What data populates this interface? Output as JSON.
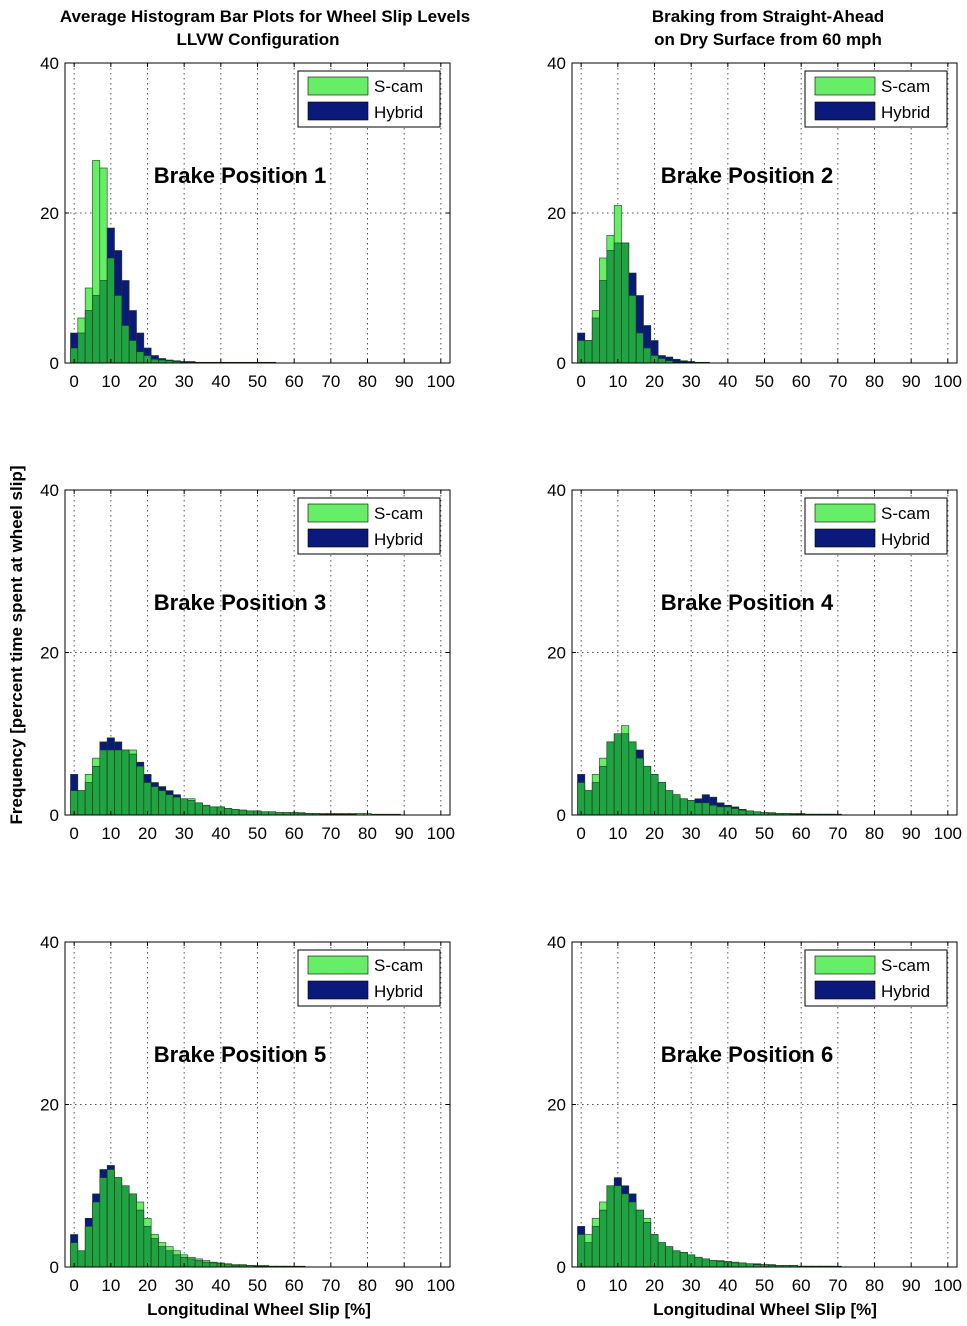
{
  "figure": {
    "title_left": [
      "Average Histogram Bar Plots for Wheel Slip Levels",
      "LLVW Configuration"
    ],
    "title_right": [
      "Braking from Straight-Ahead",
      "on Dry Surface from 60 mph"
    ],
    "ylabel": "Frequency [percent time spent at wheel slip]",
    "xlabel": "Longitudinal Wheel Slip [%]",
    "colors": {
      "scam": "#66ee66",
      "hybrid": "#0b1a7a",
      "overlap": "#1fa343",
      "edge": "#1a3a1a"
    }
  },
  "chart_data": [
    {
      "type": "bar",
      "panel": "Brake Position 1",
      "x_tick_labels": [
        "0",
        "10",
        "20",
        "30",
        "40",
        "50",
        "60",
        "70",
        "80",
        "90",
        "100"
      ],
      "y_tick_labels": [
        "0",
        "20",
        "40"
      ],
      "xlim": [
        -2.5,
        102.5
      ],
      "ylim": [
        0,
        40
      ],
      "grid": true,
      "legend_position": "top-right",
      "bin_width": 2,
      "x": [
        0,
        2,
        4,
        6,
        8,
        10,
        12,
        14,
        16,
        18,
        20,
        22,
        24,
        26,
        28,
        30,
        32,
        34,
        36,
        38,
        40,
        42,
        44,
        46,
        48,
        50,
        52,
        54,
        56,
        58,
        60,
        62,
        64,
        66,
        68,
        70,
        72,
        74,
        76,
        78,
        80,
        82,
        84,
        86,
        88,
        90,
        92,
        94,
        96,
        98,
        100
      ],
      "series": [
        {
          "name": "S-cam",
          "values": [
            2,
            6,
            10,
            27,
            26,
            14,
            9,
            5,
            3,
            1.5,
            1,
            0.5,
            0.4,
            0.3,
            0.2,
            0.1,
            0.1,
            0,
            0,
            0,
            0,
            0,
            0,
            0,
            0,
            0,
            0,
            0,
            0,
            0,
            0,
            0,
            0,
            0,
            0,
            0,
            0,
            0,
            0,
            0,
            0,
            0,
            0,
            0,
            0,
            0,
            0,
            0,
            0,
            0,
            0
          ]
        },
        {
          "name": "Hybrid",
          "values": [
            4,
            4,
            7,
            9,
            11,
            18,
            15,
            11,
            7,
            4,
            2,
            1,
            0.6,
            0.4,
            0.3,
            0.2,
            0.2,
            0.1,
            0.1,
            0.1,
            0.1,
            0.1,
            0.1,
            0.1,
            0.1,
            0.1,
            0.1,
            0.1,
            0,
            0,
            0,
            0,
            0,
            0,
            0,
            0,
            0,
            0,
            0,
            0,
            0,
            0,
            0,
            0,
            0,
            0,
            0,
            0,
            0,
            0,
            0
          ]
        }
      ]
    },
    {
      "type": "bar",
      "panel": "Brake Position 2",
      "x_tick_labels": [
        "0",
        "10",
        "20",
        "30",
        "40",
        "50",
        "60",
        "70",
        "80",
        "90",
        "100"
      ],
      "y_tick_labels": [
        "0",
        "20",
        "40"
      ],
      "xlim": [
        -2.5,
        102.5
      ],
      "ylim": [
        0,
        40
      ],
      "grid": true,
      "legend_position": "top-right",
      "bin_width": 2,
      "x": [
        0,
        2,
        4,
        6,
        8,
        10,
        12,
        14,
        16,
        18,
        20,
        22,
        24,
        26,
        28,
        30,
        32,
        34,
        36,
        38,
        40,
        42,
        44,
        46,
        48,
        50,
        52,
        54,
        56,
        58,
        60,
        62,
        64,
        66,
        68,
        70,
        72,
        74,
        76,
        78,
        80,
        82,
        84,
        86,
        88,
        90,
        92,
        94,
        96,
        98,
        100
      ],
      "series": [
        {
          "name": "S-cam",
          "values": [
            3,
            3,
            7,
            14,
            17,
            21,
            16,
            9,
            4,
            2,
            1,
            0.6,
            0.3,
            0.1,
            0,
            0,
            0,
            0,
            0,
            0,
            0,
            0,
            0,
            0,
            0,
            0,
            0,
            0,
            0,
            0,
            0,
            0,
            0,
            0,
            0,
            0,
            0,
            0,
            0,
            0,
            0,
            0,
            0,
            0,
            0,
            0,
            0,
            0,
            0,
            0,
            0
          ]
        },
        {
          "name": "Hybrid",
          "values": [
            4,
            3,
            6,
            11,
            15,
            16,
            16,
            12,
            9,
            5,
            3,
            1,
            0.8,
            0.5,
            0.3,
            0.2,
            0.1,
            0.1,
            0,
            0,
            0,
            0,
            0,
            0,
            0,
            0,
            0,
            0,
            0,
            0,
            0,
            0,
            0,
            0,
            0,
            0,
            0,
            0,
            0,
            0,
            0,
            0,
            0,
            0,
            0,
            0,
            0,
            0,
            0,
            0,
            0
          ]
        }
      ]
    },
    {
      "type": "bar",
      "panel": "Brake Position 3",
      "x_tick_labels": [
        "0",
        "10",
        "20",
        "30",
        "40",
        "50",
        "60",
        "70",
        "80",
        "90",
        "100"
      ],
      "y_tick_labels": [
        "0",
        "20",
        "40"
      ],
      "xlim": [
        -2.5,
        102.5
      ],
      "ylim": [
        0,
        40
      ],
      "grid": true,
      "legend_position": "top-right",
      "bin_width": 2,
      "x": [
        0,
        2,
        4,
        6,
        8,
        10,
        12,
        14,
        16,
        18,
        20,
        22,
        24,
        26,
        28,
        30,
        32,
        34,
        36,
        38,
        40,
        42,
        44,
        46,
        48,
        50,
        52,
        54,
        56,
        58,
        60,
        62,
        64,
        66,
        68,
        70,
        72,
        74,
        76,
        78,
        80,
        82,
        84,
        86,
        88,
        90,
        92,
        94,
        96,
        98,
        100
      ],
      "series": [
        {
          "name": "S-cam",
          "values": [
            3,
            3,
            5,
            7,
            8,
            8,
            8,
            8,
            8,
            6,
            4,
            3.5,
            3,
            2.5,
            2.2,
            2,
            2,
            1.5,
            1.2,
            1,
            1,
            0.8,
            0.7,
            0.6,
            0.5,
            0.5,
            0.4,
            0.4,
            0.3,
            0.3,
            0.3,
            0.3,
            0.2,
            0.2,
            0.2,
            0.2,
            0.2,
            0.2,
            0.2,
            0.2,
            0.2,
            0.1,
            0.1,
            0.1,
            0.1,
            0,
            0,
            0,
            0,
            0,
            0
          ]
        },
        {
          "name": "Hybrid",
          "values": [
            5,
            3,
            4,
            6,
            9,
            9.5,
            9,
            8,
            7.5,
            6.5,
            5,
            4,
            3.5,
            3,
            2.5,
            2,
            1.8,
            1.5,
            1.2,
            1,
            1,
            0.8,
            0.7,
            0.6,
            0.5,
            0.5,
            0.4,
            0.4,
            0.3,
            0.3,
            0.3,
            0.2,
            0.2,
            0.2,
            0.1,
            0.1,
            0.1,
            0.1,
            0.1,
            0,
            0,
            0,
            0,
            0,
            0,
            0,
            0,
            0,
            0,
            0,
            0
          ]
        }
      ]
    },
    {
      "type": "bar",
      "panel": "Brake Position 4",
      "x_tick_labels": [
        "0",
        "10",
        "20",
        "30",
        "40",
        "50",
        "60",
        "70",
        "80",
        "90",
        "100"
      ],
      "y_tick_labels": [
        "0",
        "20",
        "40"
      ],
      "xlim": [
        -2.5,
        102.5
      ],
      "ylim": [
        0,
        40
      ],
      "grid": true,
      "legend_position": "top-right",
      "bin_width": 2,
      "x": [
        0,
        2,
        4,
        6,
        8,
        10,
        12,
        14,
        16,
        18,
        20,
        22,
        24,
        26,
        28,
        30,
        32,
        34,
        36,
        38,
        40,
        42,
        44,
        46,
        48,
        50,
        52,
        54,
        56,
        58,
        60,
        62,
        64,
        66,
        68,
        70,
        72,
        74,
        76,
        78,
        80,
        82,
        84,
        86,
        88,
        90,
        92,
        94,
        96,
        98,
        100
      ],
      "series": [
        {
          "name": "S-cam",
          "values": [
            4,
            3,
            5,
            7,
            9,
            10,
            11,
            9,
            7,
            6,
            5,
            4,
            3,
            2.5,
            2,
            1.8,
            1.5,
            1.5,
            1.2,
            1,
            1,
            0.8,
            0.6,
            0.5,
            0.4,
            0.3,
            0.3,
            0.2,
            0.2,
            0.2,
            0.2,
            0.1,
            0.1,
            0.1,
            0.1,
            0.1,
            0,
            0,
            0,
            0,
            0,
            0,
            0,
            0,
            0,
            0,
            0,
            0,
            0,
            0,
            0
          ]
        },
        {
          "name": "Hybrid",
          "values": [
            5,
            3,
            4,
            6,
            9,
            10,
            10,
            9,
            8,
            6,
            5,
            4,
            3,
            2.5,
            2,
            1.8,
            2,
            2.5,
            2.2,
            1.5,
            1.2,
            1,
            0.7,
            0.5,
            0.4,
            0.3,
            0.2,
            0.2,
            0.2,
            0.1,
            0.1,
            0.1,
            0.1,
            0.1,
            0.1,
            0,
            0,
            0,
            0,
            0,
            0,
            0,
            0,
            0,
            0,
            0,
            0,
            0,
            0,
            0,
            0
          ]
        }
      ]
    },
    {
      "type": "bar",
      "panel": "Brake Position 5",
      "x_tick_labels": [
        "0",
        "10",
        "20",
        "30",
        "40",
        "50",
        "60",
        "70",
        "80",
        "90",
        "100"
      ],
      "y_tick_labels": [
        "0",
        "20",
        "40"
      ],
      "xlim": [
        -2.5,
        102.5
      ],
      "ylim": [
        0,
        40
      ],
      "grid": true,
      "legend_position": "top-right",
      "bin_width": 2,
      "x": [
        0,
        2,
        4,
        6,
        8,
        10,
        12,
        14,
        16,
        18,
        20,
        22,
        24,
        26,
        28,
        30,
        32,
        34,
        36,
        38,
        40,
        42,
        44,
        46,
        48,
        50,
        52,
        54,
        56,
        58,
        60,
        62,
        64,
        66,
        68,
        70,
        72,
        74,
        76,
        78,
        80,
        82,
        84,
        86,
        88,
        90,
        92,
        94,
        96,
        98,
        100
      ],
      "series": [
        {
          "name": "S-cam",
          "values": [
            3,
            2,
            5,
            8,
            11,
            12,
            11,
            10,
            9,
            8,
            6,
            4,
            3,
            2.5,
            2,
            1.5,
            1.2,
            1,
            0.8,
            0.6,
            0.5,
            0.4,
            0.3,
            0.3,
            0.2,
            0.2,
            0.2,
            0.1,
            0.1,
            0.1,
            0.1,
            0.1,
            0,
            0,
            0,
            0,
            0,
            0,
            0,
            0,
            0,
            0,
            0,
            0,
            0,
            0,
            0,
            0,
            0,
            0,
            0
          ]
        },
        {
          "name": "Hybrid",
          "values": [
            4,
            2,
            6,
            9,
            12,
            12.5,
            11,
            10,
            9,
            7,
            5,
            3.5,
            2.5,
            2,
            1.5,
            1.2,
            1,
            0.8,
            0.6,
            0.5,
            0.4,
            0.3,
            0.2,
            0.2,
            0.2,
            0.1,
            0.1,
            0.1,
            0.1,
            0.1,
            0,
            0,
            0,
            0,
            0,
            0,
            0,
            0,
            0,
            0,
            0,
            0,
            0,
            0,
            0,
            0,
            0,
            0,
            0,
            0,
            0
          ]
        }
      ]
    },
    {
      "type": "bar",
      "panel": "Brake Position 6",
      "x_tick_labels": [
        "0",
        "10",
        "20",
        "30",
        "40",
        "50",
        "60",
        "70",
        "80",
        "90",
        "100"
      ],
      "y_tick_labels": [
        "0",
        "20",
        "40"
      ],
      "xlim": [
        -2.5,
        102.5
      ],
      "ylim": [
        0,
        40
      ],
      "grid": true,
      "legend_position": "top-right",
      "bin_width": 2,
      "x": [
        0,
        2,
        4,
        6,
        8,
        10,
        12,
        14,
        16,
        18,
        20,
        22,
        24,
        26,
        28,
        30,
        32,
        34,
        36,
        38,
        40,
        42,
        44,
        46,
        48,
        50,
        52,
        54,
        56,
        58,
        60,
        62,
        64,
        66,
        68,
        70,
        72,
        74,
        76,
        78,
        80,
        82,
        84,
        86,
        88,
        90,
        92,
        94,
        96,
        98,
        100
      ],
      "series": [
        {
          "name": "S-cam",
          "values": [
            4,
            4,
            6,
            8,
            10,
            10,
            9,
            8,
            7,
            6,
            4,
            3,
            2.5,
            2,
            1.8,
            1.5,
            1.2,
            1,
            0.8,
            0.8,
            0.7,
            0.6,
            0.5,
            0.4,
            0.3,
            0.3,
            0.2,
            0.2,
            0.2,
            0.2,
            0.1,
            0.1,
            0.1,
            0.1,
            0.1,
            0,
            0,
            0,
            0,
            0,
            0,
            0,
            0,
            0,
            0,
            0,
            0,
            0,
            0,
            0,
            0
          ]
        },
        {
          "name": "Hybrid",
          "values": [
            5,
            3,
            5,
            7,
            10,
            11,
            10,
            9,
            7,
            5.5,
            4,
            3,
            2.5,
            2,
            1.8,
            1.5,
            1.2,
            1,
            0.8,
            0.7,
            0.6,
            0.5,
            0.5,
            0.4,
            0.4,
            0.3,
            0.3,
            0.2,
            0.2,
            0.2,
            0.1,
            0.1,
            0.1,
            0.1,
            0.1,
            0.1,
            0,
            0,
            0,
            0,
            0,
            0,
            0,
            0,
            0,
            0,
            0,
            0,
            0,
            0,
            0
          ]
        }
      ]
    }
  ]
}
